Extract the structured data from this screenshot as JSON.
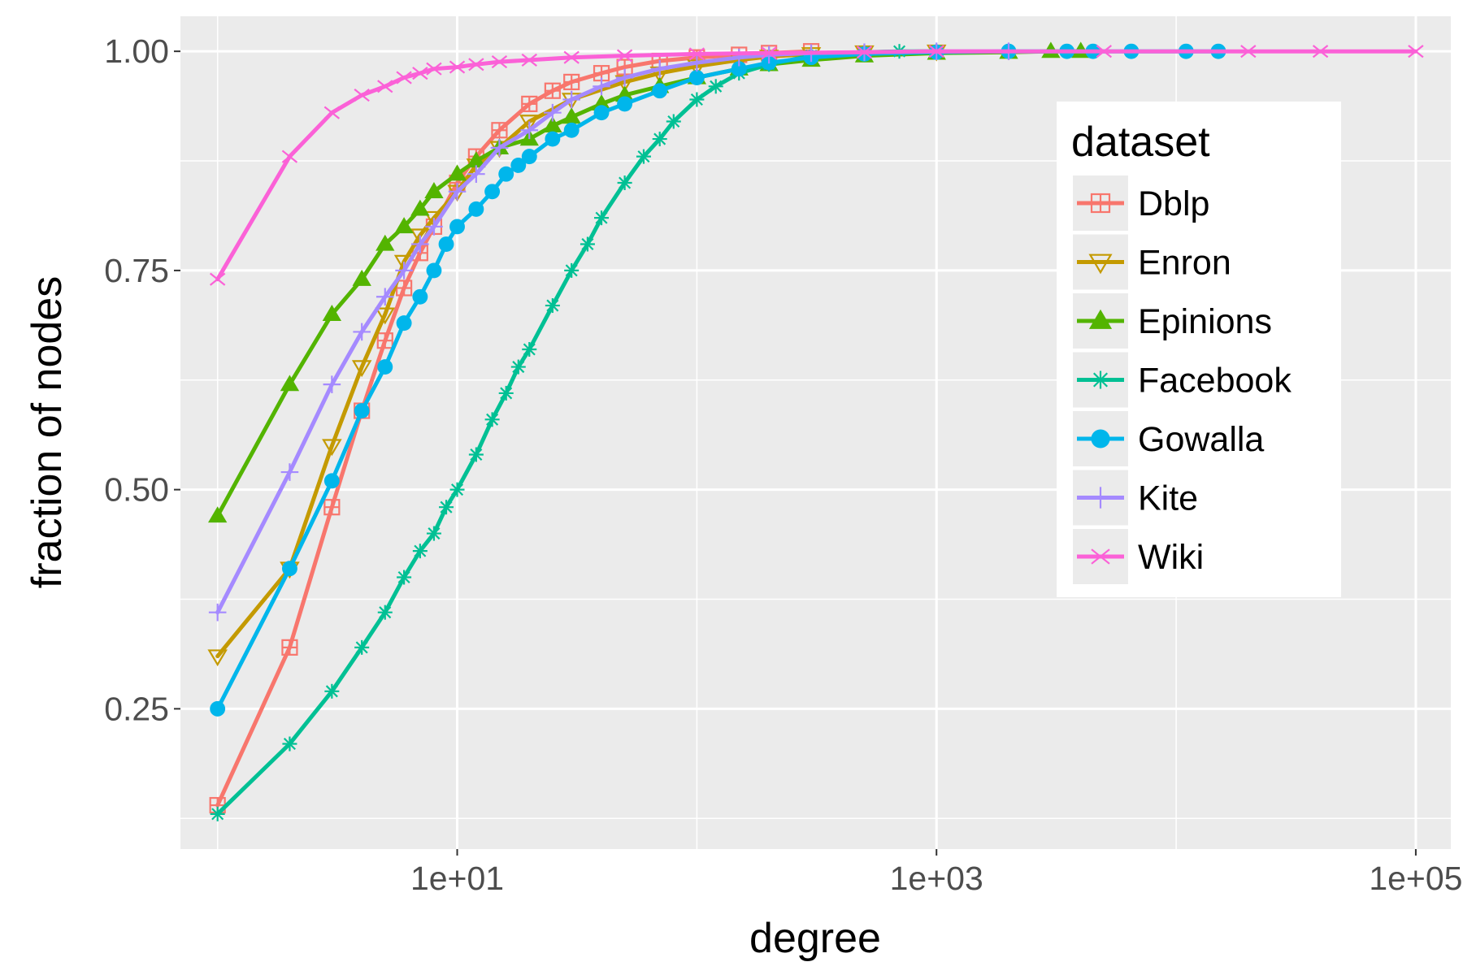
{
  "chart_data": {
    "type": "line",
    "xlabel": "degree",
    "ylabel": "fraction of nodes",
    "x_scale": "log10",
    "xlim": [
      0.7,
      140000
    ],
    "ylim": [
      0.09,
      1.04
    ],
    "x_ticks": [
      {
        "value": 10,
        "label": "1e+01"
      },
      {
        "value": 1000,
        "label": "1e+03"
      },
      {
        "value": 100000,
        "label": "1e+05"
      }
    ],
    "y_ticks": [
      {
        "value": 0.25,
        "label": "0.25"
      },
      {
        "value": 0.5,
        "label": "0.50"
      },
      {
        "value": 0.75,
        "label": "0.75"
      },
      {
        "value": 1.0,
        "label": "1.00"
      }
    ],
    "grid": true,
    "legend": {
      "title": "dataset",
      "position": "right-inside"
    },
    "series": [
      {
        "name": "Dblp",
        "color": "#F8766D",
        "marker": "square-plus",
        "x": [
          1,
          2,
          3,
          4,
          5,
          6,
          7,
          8,
          10,
          12,
          15,
          20,
          25,
          30,
          40,
          50,
          70,
          100,
          150,
          200,
          300
        ],
        "y": [
          0.14,
          0.32,
          0.48,
          0.59,
          0.67,
          0.73,
          0.77,
          0.8,
          0.85,
          0.88,
          0.91,
          0.94,
          0.955,
          0.965,
          0.975,
          0.982,
          0.989,
          0.993,
          0.996,
          0.998,
          1.0
        ]
      },
      {
        "name": "Enron",
        "color": "#C49A00",
        "marker": "triangle-down",
        "x": [
          1,
          2,
          3,
          4,
          5,
          6,
          7,
          8,
          10,
          12,
          15,
          20,
          30,
          50,
          70,
          100,
          150,
          200,
          300,
          500,
          1000
        ],
        "y": [
          0.31,
          0.41,
          0.55,
          0.64,
          0.7,
          0.76,
          0.79,
          0.81,
          0.84,
          0.87,
          0.89,
          0.92,
          0.945,
          0.965,
          0.975,
          0.983,
          0.99,
          0.994,
          0.997,
          0.999,
          1.0
        ]
      },
      {
        "name": "Epinions",
        "color": "#53B400",
        "marker": "triangle-up",
        "x": [
          1,
          2,
          3,
          4,
          5,
          6,
          7,
          8,
          10,
          12,
          15,
          20,
          25,
          30,
          40,
          50,
          70,
          100,
          150,
          200,
          300,
          500,
          1000,
          2000,
          3000,
          4000
        ],
        "y": [
          0.47,
          0.62,
          0.7,
          0.74,
          0.78,
          0.8,
          0.82,
          0.84,
          0.86,
          0.875,
          0.89,
          0.9,
          0.915,
          0.925,
          0.94,
          0.95,
          0.96,
          0.97,
          0.98,
          0.985,
          0.99,
          0.995,
          0.998,
          0.999,
          1.0,
          1.0
        ]
      },
      {
        "name": "Facebook",
        "color": "#00C094",
        "marker": "asterisk",
        "x": [
          1,
          2,
          3,
          4,
          5,
          6,
          7,
          8,
          9,
          10,
          12,
          14,
          16,
          18,
          20,
          25,
          30,
          35,
          40,
          50,
          60,
          70,
          80,
          100,
          120,
          150,
          200,
          300,
          500,
          700,
          1000
        ],
        "y": [
          0.13,
          0.21,
          0.27,
          0.32,
          0.36,
          0.4,
          0.43,
          0.45,
          0.48,
          0.5,
          0.54,
          0.58,
          0.61,
          0.64,
          0.66,
          0.71,
          0.75,
          0.78,
          0.81,
          0.85,
          0.88,
          0.9,
          0.92,
          0.945,
          0.96,
          0.975,
          0.985,
          0.995,
          0.999,
          1.0,
          1.0
        ]
      },
      {
        "name": "Gowalla",
        "color": "#00B6EB",
        "marker": "circle",
        "x": [
          1,
          2,
          3,
          4,
          5,
          6,
          7,
          8,
          9,
          10,
          12,
          14,
          16,
          18,
          20,
          25,
          30,
          40,
          50,
          70,
          100,
          150,
          200,
          300,
          500,
          1000,
          2000,
          3500,
          4500,
          6500,
          11000,
          15000
        ],
        "y": [
          0.25,
          0.41,
          0.51,
          0.59,
          0.64,
          0.69,
          0.72,
          0.75,
          0.78,
          0.8,
          0.82,
          0.84,
          0.86,
          0.87,
          0.88,
          0.9,
          0.91,
          0.93,
          0.94,
          0.955,
          0.97,
          0.98,
          0.987,
          0.993,
          0.997,
          0.999,
          1.0,
          1.0,
          1.0,
          1.0,
          1.0,
          1.0
        ]
      },
      {
        "name": "Kite",
        "color": "#A58AFF",
        "marker": "plus",
        "x": [
          1,
          2,
          3,
          4,
          5,
          6,
          7,
          8,
          10,
          12,
          15,
          20,
          25,
          30,
          40,
          50,
          70,
          100,
          150,
          200,
          300,
          500,
          1000,
          2000
        ],
        "y": [
          0.36,
          0.52,
          0.62,
          0.68,
          0.72,
          0.75,
          0.78,
          0.8,
          0.84,
          0.86,
          0.89,
          0.91,
          0.93,
          0.945,
          0.96,
          0.97,
          0.98,
          0.987,
          0.993,
          0.996,
          0.998,
          0.999,
          1.0,
          1.0
        ]
      },
      {
        "name": "Wiki",
        "color": "#FB61D7",
        "marker": "cross",
        "x": [
          1,
          2,
          3,
          4,
          5,
          6,
          7,
          8,
          10,
          12,
          15,
          20,
          30,
          50,
          100,
          200,
          500,
          1000,
          5000,
          20000,
          40000,
          100000
        ],
        "y": [
          0.74,
          0.88,
          0.93,
          0.95,
          0.96,
          0.97,
          0.975,
          0.98,
          0.982,
          0.985,
          0.988,
          0.99,
          0.993,
          0.995,
          0.997,
          0.998,
          0.999,
          1.0,
          1.0,
          1.0,
          1.0,
          1.0
        ]
      }
    ]
  }
}
